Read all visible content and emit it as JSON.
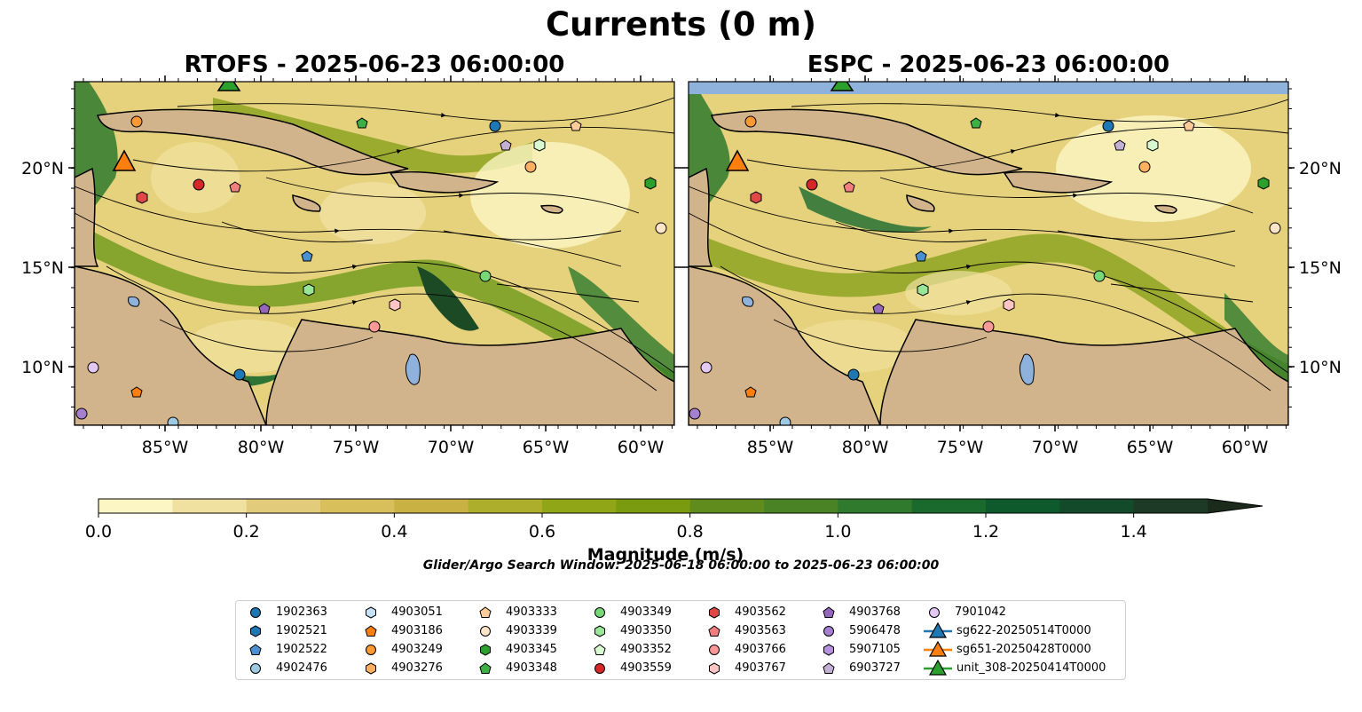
{
  "figure": {
    "title": "Currents (0 m)",
    "panels": [
      {
        "title": "RTOFS - 2025-06-23 06:00:00"
      },
      {
        "title": "ESPC - 2025-06-23 06:00:00"
      }
    ],
    "lon_ticks": [
      "85°W",
      "80°W",
      "75°W",
      "70°W",
      "65°W",
      "60°W"
    ],
    "lat_ticks": [
      "20°N",
      "15°N",
      "10°N"
    ],
    "colors": {
      "land": "#d2b48c",
      "ocean_nodata": "#8eb2dc",
      "lakes": "#8eb2dc",
      "coastline": "#000000",
      "streamlines": "#000000"
    }
  },
  "colorbar": {
    "label": "Magnitude (m/s)",
    "ticks": [
      "0.0",
      "0.2",
      "0.4",
      "0.6",
      "0.8",
      "1.0",
      "1.2",
      "1.4"
    ],
    "range": [
      0.0,
      1.5
    ],
    "extend": "max",
    "colors": [
      "#fbf6c4",
      "#f0e1a0",
      "#e2cb7a",
      "#d8bf5b",
      "#c9b243",
      "#adae2b",
      "#90a617",
      "#7a9a10",
      "#5f8c1c",
      "#4a8326",
      "#2f7a2d",
      "#1a6a2e",
      "#0e5a2c",
      "#134a2a",
      "#1c3a25",
      "#1a2b1c"
    ]
  },
  "search_window": "Glider/Argo Search Window: 2025-06-18 06:00:00 to 2025-06-23 06:00:00",
  "legend": {
    "columns": [
      [
        {
          "label": "1902363",
          "marker": "circle",
          "color": "#1f77b4"
        },
        {
          "label": "1902521",
          "marker": "hexagon",
          "color": "#1f77b4"
        },
        {
          "label": "1902522",
          "marker": "pentagon",
          "color": "#4a90d0"
        },
        {
          "label": "4902476",
          "marker": "circle",
          "color": "#9ecae1"
        }
      ],
      [
        {
          "label": "4903051",
          "marker": "hexagon",
          "color": "#c6e2f7"
        },
        {
          "label": "4903186",
          "marker": "pentagon",
          "color": "#ff7f0e"
        },
        {
          "label": "4903249",
          "marker": "circle",
          "color": "#ff9933"
        },
        {
          "label": "4903276",
          "marker": "hexagon",
          "color": "#ffb060"
        }
      ],
      [
        {
          "label": "4903333",
          "marker": "pentagon",
          "color": "#ffcc99"
        },
        {
          "label": "4903339",
          "marker": "circle",
          "color": "#ffe5c8"
        },
        {
          "label": "4903345",
          "marker": "hexagon",
          "color": "#2ca02c"
        },
        {
          "label": "4903348",
          "marker": "pentagon",
          "color": "#3cb043"
        }
      ],
      [
        {
          "label": "4903349",
          "marker": "circle",
          "color": "#77d877"
        },
        {
          "label": "4903350",
          "marker": "hexagon",
          "color": "#99e699"
        },
        {
          "label": "4903352",
          "marker": "pentagon",
          "color": "#d8f8d0"
        },
        {
          "label": "4903559",
          "marker": "circle",
          "color": "#d62728"
        }
      ],
      [
        {
          "label": "4903562",
          "marker": "hexagon",
          "color": "#e04848"
        },
        {
          "label": "4903563",
          "marker": "pentagon",
          "color": "#f08080"
        },
        {
          "label": "4903766",
          "marker": "circle",
          "color": "#ff9896"
        },
        {
          "label": "4903767",
          "marker": "hexagon",
          "color": "#ffc4c4"
        }
      ],
      [
        {
          "label": "4903768",
          "marker": "pentagon",
          "color": "#9467bd"
        },
        {
          "label": "5906478",
          "marker": "circle",
          "color": "#a57fd0"
        },
        {
          "label": "5907105",
          "marker": "hexagon",
          "color": "#b890e0"
        },
        {
          "label": "6903727",
          "marker": "pentagon",
          "color": "#c5b0d5"
        }
      ],
      [
        {
          "label": "7901042",
          "marker": "circle",
          "color": "#e4c8f4"
        },
        {
          "label": "sg622-20250514T0000",
          "marker": "triangle-line",
          "color": "#1f77b4"
        },
        {
          "label": "sg651-20250428T0000",
          "marker": "triangle-line",
          "color": "#ff7f0e"
        },
        {
          "label": "unit_308-20250414T0000",
          "marker": "triangle-line",
          "color": "#2ca02c"
        }
      ]
    ]
  }
}
